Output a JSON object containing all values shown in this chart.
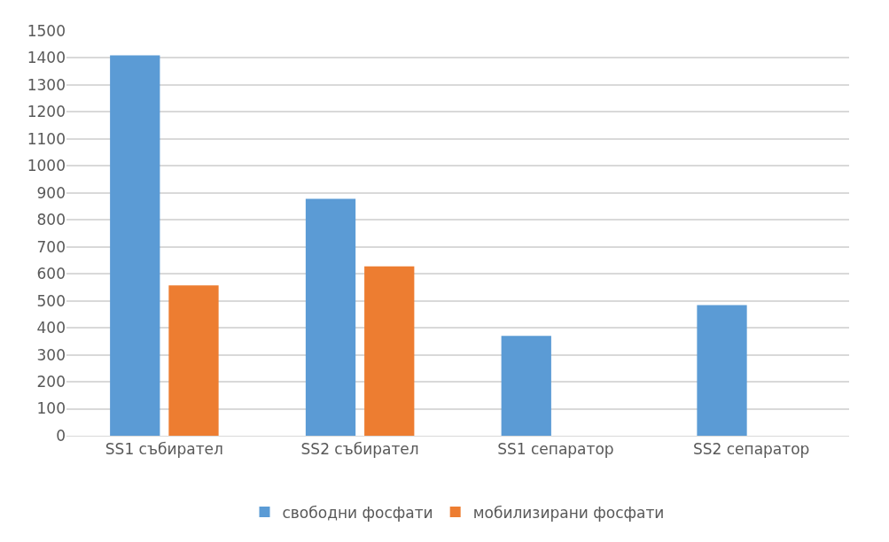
{
  "chart_data": {
    "type": "bar",
    "categories": [
      "SS1 събирател",
      "SS2 събирател",
      "SS1 сепаратор",
      "SS2 сепаратор"
    ],
    "series": [
      {
        "name": "свободни фосфати",
        "color": "#5b9bd5",
        "values": [
          1410,
          878,
          370,
          484
        ]
      },
      {
        "name": "мобилизирани фосфати",
        "color": "#ed7d31",
        "values": [
          557,
          628,
          null,
          null
        ]
      }
    ],
    "ylim": [
      0,
      1500
    ],
    "yticks": [
      0,
      100,
      200,
      300,
      400,
      500,
      600,
      700,
      800,
      900,
      1000,
      1100,
      1200,
      1300,
      1400,
      1500
    ],
    "grid": "y",
    "legend": "bottom"
  }
}
